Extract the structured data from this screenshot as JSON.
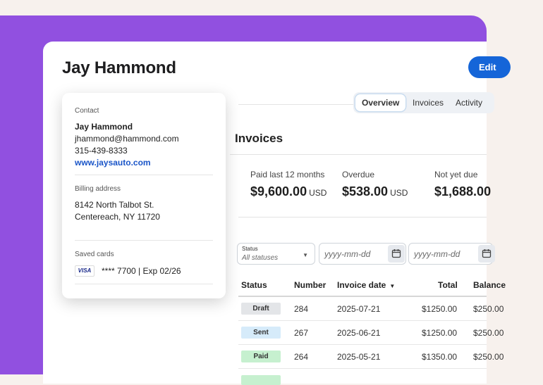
{
  "header": {
    "title": "Jay Hammond",
    "edit_label": "Edit"
  },
  "tabs": [
    {
      "label": "Overview",
      "active": true
    },
    {
      "label": "Invoices",
      "active": false
    },
    {
      "label": "Activity",
      "active": false
    }
  ],
  "invoices": {
    "title": "Invoices",
    "stats": [
      {
        "label": "Paid last 12 months",
        "value": "$9,600.00",
        "currency": "USD"
      },
      {
        "label": "Overdue",
        "value": "$538.00",
        "currency": "USD"
      },
      {
        "label": "Not yet due",
        "value": "$1,688.00",
        "currency": ""
      }
    ],
    "filters": {
      "status_label": "Status",
      "status_value": "All statuses",
      "date_from_placeholder": "yyyy-mm-dd",
      "date_to_placeholder": "yyyy-mm-dd"
    },
    "columns": [
      "Status",
      "Number",
      "Invoice date",
      "Total",
      "Balance"
    ],
    "rows": [
      {
        "status": "Draft",
        "number": "284",
        "date": "2025-07-21",
        "total": "$1250.00",
        "balance": "$250.00"
      },
      {
        "status": "Sent",
        "number": "267",
        "date": "2025-06-21",
        "total": "$1250.00",
        "balance": "$250.00"
      },
      {
        "status": "Paid",
        "number": "264",
        "date": "2025-05-21",
        "total": "$1350.00",
        "balance": "$250.00"
      }
    ]
  },
  "contact": {
    "section_label": "Contact",
    "name": "Jay Hammond",
    "email": "jhammond@hammond.com",
    "phone": "315-439-8333",
    "website": "www.jaysauto.com",
    "billing_label": "Billing address",
    "address_line1": "8142 North Talbot St.",
    "address_line2": "Centereach, NY 11720",
    "cards_label": "Saved cards",
    "card_brand": "VISA",
    "card_text": "**** 7700 | Exp 02/26"
  },
  "colors": {
    "accent": "#1565d8",
    "background_purple": "#9150e0",
    "draft_badge": "#e3e5e8",
    "sent_badge": "#d6ebfa",
    "paid_badge": "#c6f0cf"
  }
}
